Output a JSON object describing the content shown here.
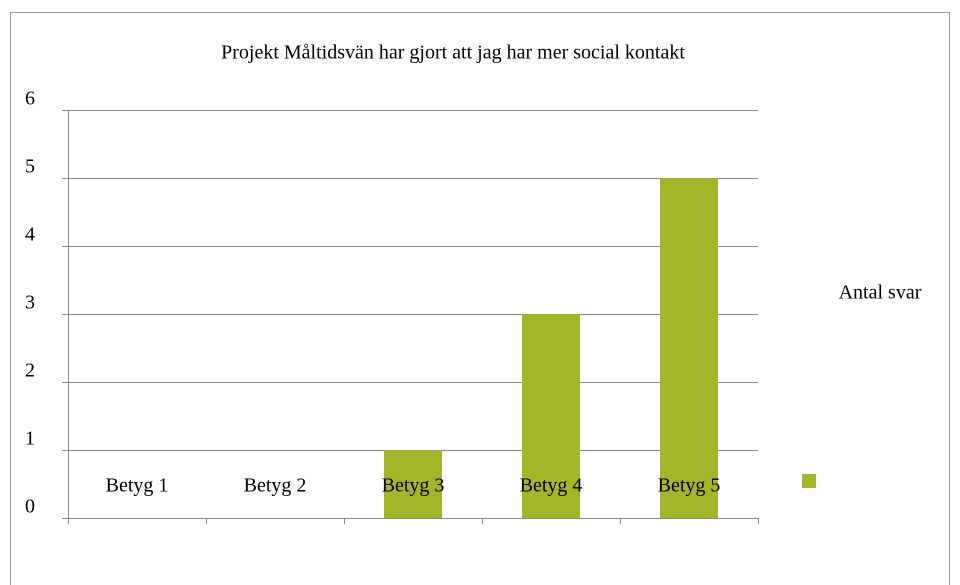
{
  "chart_data": {
    "type": "bar",
    "title": "Projekt Måltidsvän har gjort att jag har mer social kontakt",
    "categories": [
      "Betyg 1",
      "Betyg 2",
      "Betyg 3",
      "Betyg 4",
      "Betyg 5"
    ],
    "series": [
      {
        "name": "Antal svar",
        "color": "#a5b52a",
        "values": [
          0,
          0,
          1,
          3,
          5
        ]
      }
    ],
    "ylim": [
      0,
      6
    ],
    "yticks": [
      0,
      1,
      2,
      3,
      4,
      5,
      6
    ],
    "grid": true,
    "legend": "right"
  }
}
